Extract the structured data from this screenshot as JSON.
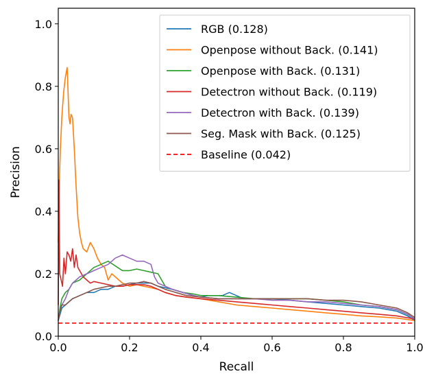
{
  "chart_data": {
    "type": "line",
    "title": "",
    "xlabel": "Recall",
    "ylabel": "Precision",
    "xlim": [
      0.0,
      1.0
    ],
    "ylim": [
      0.0,
      1.05
    ],
    "x_ticks": [
      "0.0",
      "0.2",
      "0.4",
      "0.6",
      "0.8",
      "1.0"
    ],
    "y_ticks": [
      "0.0",
      "0.2",
      "0.4",
      "0.6",
      "0.8",
      "1.0"
    ],
    "grid": false,
    "legend_position": "top-right",
    "series": [
      {
        "name": "RGB (0.128)",
        "color": "#1f77b4",
        "dashed": false,
        "points": [
          [
            0.0,
            0.05
          ],
          [
            0.005,
            0.07
          ],
          [
            0.01,
            0.09
          ],
          [
            0.02,
            0.1
          ],
          [
            0.03,
            0.11
          ],
          [
            0.04,
            0.12
          ],
          [
            0.06,
            0.13
          ],
          [
            0.08,
            0.14
          ],
          [
            0.1,
            0.14
          ],
          [
            0.12,
            0.15
          ],
          [
            0.14,
            0.15
          ],
          [
            0.16,
            0.16
          ],
          [
            0.18,
            0.16
          ],
          [
            0.2,
            0.165
          ],
          [
            0.22,
            0.17
          ],
          [
            0.24,
            0.17
          ],
          [
            0.26,
            0.17
          ],
          [
            0.28,
            0.16
          ],
          [
            0.3,
            0.155
          ],
          [
            0.32,
            0.15
          ],
          [
            0.35,
            0.14
          ],
          [
            0.38,
            0.13
          ],
          [
            0.4,
            0.125
          ],
          [
            0.42,
            0.13
          ],
          [
            0.44,
            0.13
          ],
          [
            0.46,
            0.13
          ],
          [
            0.48,
            0.14
          ],
          [
            0.5,
            0.13
          ],
          [
            0.52,
            0.12
          ],
          [
            0.55,
            0.12
          ],
          [
            0.58,
            0.12
          ],
          [
            0.6,
            0.12
          ],
          [
            0.65,
            0.115
          ],
          [
            0.7,
            0.11
          ],
          [
            0.75,
            0.105
          ],
          [
            0.8,
            0.1
          ],
          [
            0.85,
            0.095
          ],
          [
            0.9,
            0.09
          ],
          [
            0.95,
            0.08
          ],
          [
            0.98,
            0.065
          ],
          [
            1.0,
            0.05
          ]
        ]
      },
      {
        "name": "Openpose without Back. (0.141)",
        "color": "#ff7f0e",
        "dashed": false,
        "points": [
          [
            0.0,
            0.3
          ],
          [
            0.003,
            0.5
          ],
          [
            0.006,
            0.6
          ],
          [
            0.01,
            0.7
          ],
          [
            0.015,
            0.78
          ],
          [
            0.02,
            0.83
          ],
          [
            0.025,
            0.86
          ],
          [
            0.03,
            0.7
          ],
          [
            0.033,
            0.68
          ],
          [
            0.036,
            0.71
          ],
          [
            0.04,
            0.7
          ],
          [
            0.045,
            0.6
          ],
          [
            0.05,
            0.48
          ],
          [
            0.055,
            0.38
          ],
          [
            0.06,
            0.33
          ],
          [
            0.065,
            0.3
          ],
          [
            0.07,
            0.28
          ],
          [
            0.08,
            0.27
          ],
          [
            0.09,
            0.3
          ],
          [
            0.1,
            0.28
          ],
          [
            0.11,
            0.25
          ],
          [
            0.12,
            0.23
          ],
          [
            0.13,
            0.22
          ],
          [
            0.14,
            0.18
          ],
          [
            0.15,
            0.2
          ],
          [
            0.16,
            0.19
          ],
          [
            0.18,
            0.17
          ],
          [
            0.2,
            0.16
          ],
          [
            0.22,
            0.165
          ],
          [
            0.24,
            0.16
          ],
          [
            0.26,
            0.155
          ],
          [
            0.28,
            0.15
          ],
          [
            0.3,
            0.14
          ],
          [
            0.33,
            0.13
          ],
          [
            0.36,
            0.125
          ],
          [
            0.4,
            0.12
          ],
          [
            0.45,
            0.11
          ],
          [
            0.5,
            0.1
          ],
          [
            0.55,
            0.095
          ],
          [
            0.6,
            0.09
          ],
          [
            0.65,
            0.085
          ],
          [
            0.7,
            0.08
          ],
          [
            0.75,
            0.075
          ],
          [
            0.8,
            0.07
          ],
          [
            0.85,
            0.065
          ],
          [
            0.9,
            0.062
          ],
          [
            0.95,
            0.058
          ],
          [
            1.0,
            0.05
          ]
        ]
      },
      {
        "name": "Openpose with Back. (0.131)",
        "color": "#2ca02c",
        "dashed": false,
        "points": [
          [
            0.0,
            0.05
          ],
          [
            0.005,
            0.09
          ],
          [
            0.01,
            0.12
          ],
          [
            0.02,
            0.14
          ],
          [
            0.03,
            0.15
          ],
          [
            0.04,
            0.17
          ],
          [
            0.06,
            0.18
          ],
          [
            0.08,
            0.2
          ],
          [
            0.1,
            0.22
          ],
          [
            0.12,
            0.23
          ],
          [
            0.14,
            0.24
          ],
          [
            0.16,
            0.225
          ],
          [
            0.18,
            0.21
          ],
          [
            0.2,
            0.21
          ],
          [
            0.22,
            0.215
          ],
          [
            0.24,
            0.21
          ],
          [
            0.26,
            0.205
          ],
          [
            0.28,
            0.2
          ],
          [
            0.3,
            0.16
          ],
          [
            0.32,
            0.15
          ],
          [
            0.35,
            0.14
          ],
          [
            0.38,
            0.135
          ],
          [
            0.4,
            0.13
          ],
          [
            0.45,
            0.13
          ],
          [
            0.5,
            0.125
          ],
          [
            0.55,
            0.12
          ],
          [
            0.6,
            0.12
          ],
          [
            0.65,
            0.12
          ],
          [
            0.7,
            0.12
          ],
          [
            0.75,
            0.115
          ],
          [
            0.8,
            0.11
          ],
          [
            0.85,
            0.1
          ],
          [
            0.9,
            0.095
          ],
          [
            0.95,
            0.085
          ],
          [
            0.98,
            0.07
          ],
          [
            1.0,
            0.055
          ]
        ]
      },
      {
        "name": "Detectron without Back. (0.119)",
        "color": "#d62728",
        "dashed": false,
        "points": [
          [
            0.0,
            0.1
          ],
          [
            0.002,
            0.5
          ],
          [
            0.004,
            0.2
          ],
          [
            0.008,
            0.18
          ],
          [
            0.012,
            0.16
          ],
          [
            0.016,
            0.25
          ],
          [
            0.02,
            0.2
          ],
          [
            0.025,
            0.27
          ],
          [
            0.03,
            0.26
          ],
          [
            0.035,
            0.24
          ],
          [
            0.04,
            0.28
          ],
          [
            0.045,
            0.22
          ],
          [
            0.05,
            0.26
          ],
          [
            0.055,
            0.22
          ],
          [
            0.06,
            0.21
          ],
          [
            0.07,
            0.19
          ],
          [
            0.08,
            0.18
          ],
          [
            0.09,
            0.17
          ],
          [
            0.1,
            0.175
          ],
          [
            0.12,
            0.17
          ],
          [
            0.14,
            0.165
          ],
          [
            0.16,
            0.16
          ],
          [
            0.18,
            0.16
          ],
          [
            0.2,
            0.165
          ],
          [
            0.22,
            0.165
          ],
          [
            0.24,
            0.165
          ],
          [
            0.26,
            0.16
          ],
          [
            0.28,
            0.15
          ],
          [
            0.3,
            0.14
          ],
          [
            0.33,
            0.13
          ],
          [
            0.36,
            0.125
          ],
          [
            0.4,
            0.12
          ],
          [
            0.45,
            0.115
          ],
          [
            0.5,
            0.11
          ],
          [
            0.55,
            0.105
          ],
          [
            0.6,
            0.1
          ],
          [
            0.65,
            0.095
          ],
          [
            0.7,
            0.09
          ],
          [
            0.75,
            0.085
          ],
          [
            0.8,
            0.08
          ],
          [
            0.85,
            0.075
          ],
          [
            0.9,
            0.07
          ],
          [
            0.95,
            0.065
          ],
          [
            1.0,
            0.055
          ]
        ]
      },
      {
        "name": "Detectron with Back. (0.139)",
        "color": "#9467bd",
        "dashed": false,
        "points": [
          [
            0.0,
            0.05
          ],
          [
            0.005,
            0.08
          ],
          [
            0.01,
            0.1
          ],
          [
            0.02,
            0.12
          ],
          [
            0.03,
            0.15
          ],
          [
            0.04,
            0.17
          ],
          [
            0.05,
            0.18
          ],
          [
            0.06,
            0.19
          ],
          [
            0.08,
            0.2
          ],
          [
            0.1,
            0.21
          ],
          [
            0.12,
            0.22
          ],
          [
            0.14,
            0.23
          ],
          [
            0.16,
            0.25
          ],
          [
            0.18,
            0.26
          ],
          [
            0.2,
            0.25
          ],
          [
            0.22,
            0.24
          ],
          [
            0.24,
            0.24
          ],
          [
            0.26,
            0.23
          ],
          [
            0.27,
            0.19
          ],
          [
            0.28,
            0.17
          ],
          [
            0.3,
            0.16
          ],
          [
            0.32,
            0.15
          ],
          [
            0.35,
            0.14
          ],
          [
            0.38,
            0.13
          ],
          [
            0.4,
            0.125
          ],
          [
            0.45,
            0.12
          ],
          [
            0.5,
            0.12
          ],
          [
            0.55,
            0.12
          ],
          [
            0.6,
            0.115
          ],
          [
            0.65,
            0.115
          ],
          [
            0.7,
            0.11
          ],
          [
            0.75,
            0.11
          ],
          [
            0.8,
            0.105
          ],
          [
            0.85,
            0.1
          ],
          [
            0.9,
            0.095
          ],
          [
            0.95,
            0.085
          ],
          [
            0.98,
            0.07
          ],
          [
            1.0,
            0.055
          ]
        ]
      },
      {
        "name": "Seg. Mask with Back. (0.125)",
        "color": "#8c564b",
        "dashed": false,
        "points": [
          [
            0.0,
            0.05
          ],
          [
            0.005,
            0.08
          ],
          [
            0.01,
            0.1
          ],
          [
            0.02,
            0.1
          ],
          [
            0.03,
            0.11
          ],
          [
            0.04,
            0.12
          ],
          [
            0.06,
            0.13
          ],
          [
            0.08,
            0.14
          ],
          [
            0.1,
            0.15
          ],
          [
            0.12,
            0.155
          ],
          [
            0.14,
            0.16
          ],
          [
            0.16,
            0.16
          ],
          [
            0.18,
            0.165
          ],
          [
            0.2,
            0.17
          ],
          [
            0.22,
            0.17
          ],
          [
            0.24,
            0.175
          ],
          [
            0.26,
            0.17
          ],
          [
            0.28,
            0.16
          ],
          [
            0.3,
            0.15
          ],
          [
            0.33,
            0.14
          ],
          [
            0.36,
            0.13
          ],
          [
            0.4,
            0.125
          ],
          [
            0.45,
            0.12
          ],
          [
            0.5,
            0.12
          ],
          [
            0.55,
            0.12
          ],
          [
            0.6,
            0.12
          ],
          [
            0.65,
            0.12
          ],
          [
            0.7,
            0.12
          ],
          [
            0.75,
            0.115
          ],
          [
            0.8,
            0.115
          ],
          [
            0.85,
            0.11
          ],
          [
            0.9,
            0.1
          ],
          [
            0.95,
            0.09
          ],
          [
            0.98,
            0.075
          ],
          [
            1.0,
            0.06
          ]
        ]
      },
      {
        "name": "Baseline (0.042)",
        "color": "#ff0000",
        "dashed": true,
        "points": [
          [
            0.0,
            0.042
          ],
          [
            1.0,
            0.042
          ]
        ]
      }
    ]
  }
}
